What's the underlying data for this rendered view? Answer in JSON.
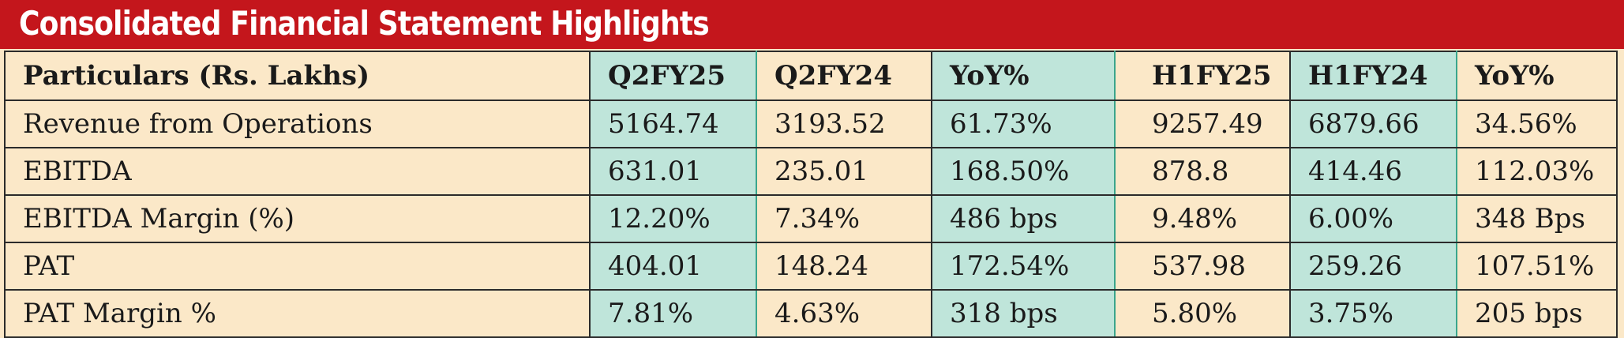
{
  "title": "Consolidated Financial Statement Highlights",
  "colors": {
    "banner": "#c4161c",
    "background": "#fbe8c8",
    "highlight": "#bfe5da"
  },
  "table": {
    "headers": [
      "Particulars (Rs. Lakhs)",
      "Q2FY25",
      "Q2FY24",
      "YoY%",
      "H1FY25",
      "H1FY24",
      "YoY%"
    ],
    "rows": [
      [
        "Revenue from Operations",
        "5164.74",
        "3193.52",
        "61.73%",
        "9257.49",
        "6879.66",
        "34.56%"
      ],
      [
        "EBITDA",
        "631.01",
        "235.01",
        "168.50%",
        "878.8",
        "414.46",
        "112.03%"
      ],
      [
        "EBITDA Margin (%)",
        "12.20%",
        "7.34%",
        "486 bps",
        "9.48%",
        "6.00%",
        "348 Bps"
      ],
      [
        "PAT",
        "404.01",
        "148.24",
        "172.54%",
        "537.98",
        "259.26",
        "107.51%"
      ],
      [
        "PAT Margin %",
        "7.81%",
        "4.63%",
        "318 bps",
        "5.80%",
        "3.75%",
        "205 bps"
      ]
    ]
  }
}
